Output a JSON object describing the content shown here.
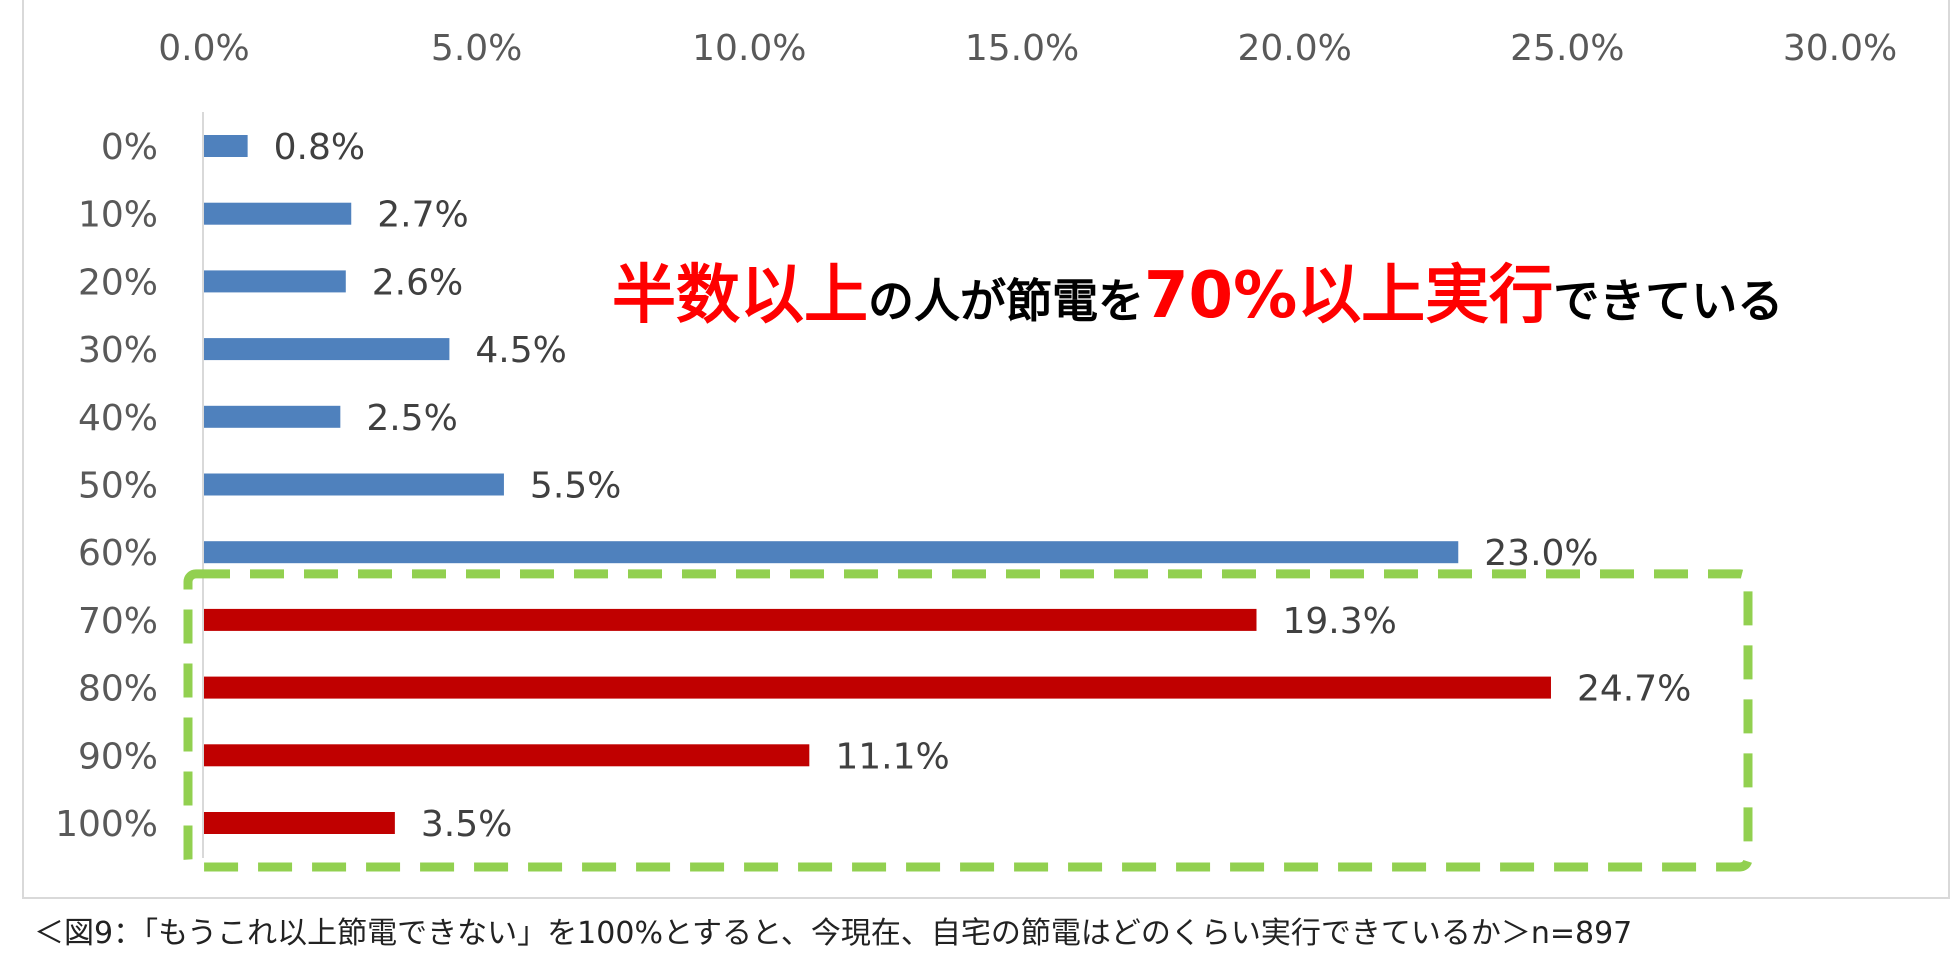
{
  "chart_data": {
    "type": "bar",
    "orientation": "horizontal",
    "categories": [
      "0%",
      "10%",
      "20%",
      "30%",
      "40%",
      "50%",
      "60%",
      "70%",
      "80%",
      "90%",
      "100%"
    ],
    "values": [
      0.8,
      2.7,
      2.6,
      4.5,
      2.5,
      5.5,
      23.0,
      19.3,
      24.7,
      11.1,
      3.5
    ],
    "value_labels": [
      "0.8%",
      "2.7%",
      "2.6%",
      "4.5%",
      "2.5%",
      "5.5%",
      "23.0%",
      "19.3%",
      "24.7%",
      "11.1%",
      "3.5%"
    ],
    "xlim": [
      0,
      30
    ],
    "x_ticks": [
      0,
      5,
      10,
      15,
      20,
      25,
      30
    ],
    "x_tick_labels": [
      "0.0%",
      "5.0%",
      "10.0%",
      "15.0%",
      "20.0%",
      "25.0%",
      "30.0%"
    ],
    "x_axis_position": "top",
    "grid": false,
    "legend": "none",
    "highlight_from_category": "70%",
    "colors": {
      "base": "#4f81bd",
      "highlight": "#c00000",
      "highlight_box": "#92d050"
    }
  },
  "headline": {
    "part1": "半数以上",
    "part2": "の人が節電を",
    "part3": "70%以上実行",
    "part4": "できている",
    "accent_color": "#ff0000"
  },
  "caption": "＜図9：「もうこれ以上節電できない」を100%とすると、今現在、自宅の節電はどのくらい実行できているか＞n=897"
}
